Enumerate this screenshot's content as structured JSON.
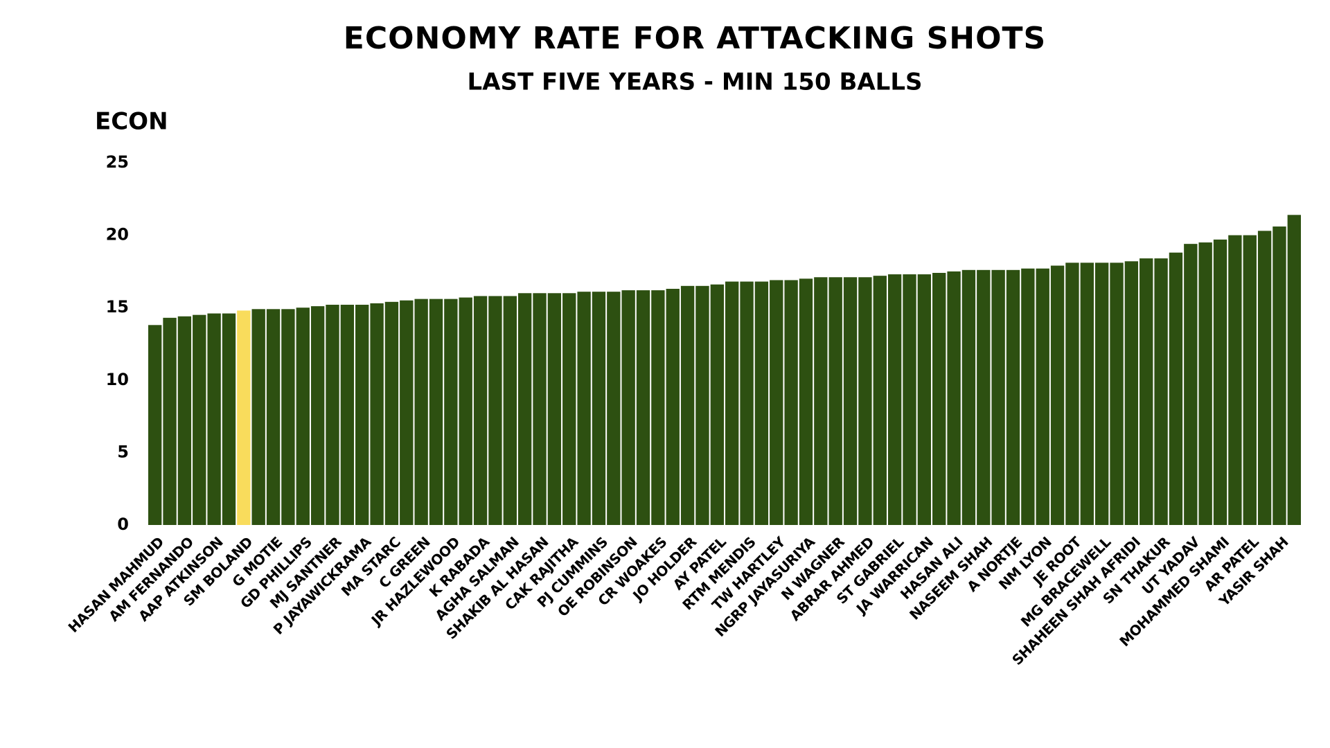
{
  "chart_data": {
    "type": "bar",
    "title": "ECONOMY RATE FOR ATTACKING SHOTS",
    "subtitle": "LAST FIVE YEARS - MIN 150 BALLS",
    "y_label": "ECON",
    "categories": [
      "HASAN MAHMUD",
      null,
      "AM FERNANDO",
      null,
      "AAP ATKINSON",
      null,
      "SM BOLAND",
      null,
      "G MOTIE",
      null,
      "GD PHILLIPS",
      null,
      "MJ SANTNER",
      null,
      "P JAYAWICKRAMA",
      null,
      "MA STARC",
      null,
      "C GREEN",
      null,
      "JR HAZLEWOOD",
      null,
      "K RABADA",
      null,
      "AGHA SALMAN",
      null,
      "SHAKIB AL HASAN",
      null,
      "CAK RAJITHA",
      null,
      "PJ CUMMINS",
      null,
      "OE ROBINSON",
      null,
      "CR WOAKES",
      null,
      "JO HOLDER",
      null,
      "AY PATEL",
      null,
      "RTM MENDIS",
      null,
      "TW HARTLEY",
      null,
      "NGRP JAYASURIYA",
      null,
      "N WAGNER",
      null,
      "ABRAR AHMED",
      null,
      "ST GABRIEL",
      null,
      "JA WARRICAN",
      null,
      "HASAN ALI",
      null,
      "NASEEM SHAH",
      null,
      "A NORTJE",
      null,
      "NM LYON",
      null,
      "JE ROOT",
      null,
      "MG BRACEWELL",
      null,
      "SHAHEEN SHAH AFRIDI",
      null,
      "SN THAKUR",
      null,
      "UT YADAV",
      null,
      "MOHAMMED SHAMI",
      null,
      "AR PATEL",
      null,
      "YASIR SHAH",
      null
    ],
    "values": [
      13.8,
      14.3,
      14.4,
      14.5,
      14.6,
      14.6,
      14.8,
      14.9,
      14.9,
      14.9,
      15.0,
      15.1,
      15.2,
      15.2,
      15.2,
      15.3,
      15.4,
      15.5,
      15.6,
      15.6,
      15.6,
      15.7,
      15.8,
      15.8,
      15.8,
      16.0,
      16.0,
      16.0,
      16.0,
      16.1,
      16.1,
      16.1,
      16.2,
      16.2,
      16.2,
      16.3,
      16.5,
      16.5,
      16.6,
      16.8,
      16.8,
      16.8,
      16.9,
      16.9,
      17.0,
      17.1,
      17.1,
      17.1,
      17.1,
      17.2,
      17.3,
      17.3,
      17.3,
      17.4,
      17.5,
      17.6,
      17.6,
      17.6,
      17.6,
      17.7,
      17.7,
      17.9,
      18.1,
      18.1,
      18.1,
      18.1,
      18.2,
      18.4,
      18.4,
      18.8,
      19.4,
      19.5,
      19.7,
      20.0,
      20.0,
      20.3,
      20.6,
      21.4
    ],
    "colors": [
      "#2d5011",
      "#2d5011",
      "#2d5011",
      "#2d5011",
      "#2d5011",
      "#2d5011",
      "#f9dc5c",
      "#2d5011",
      "#2d5011",
      "#2d5011",
      "#2d5011",
      "#2d5011",
      "#2d5011",
      "#2d5011",
      "#2d5011",
      "#2d5011",
      "#2d5011",
      "#2d5011",
      "#2d5011",
      "#2d5011",
      "#2d5011",
      "#2d5011",
      "#2d5011",
      "#2d5011",
      "#2d5011",
      "#2d5011",
      "#2d5011",
      "#2d5011",
      "#2d5011",
      "#2d5011",
      "#2d5011",
      "#2d5011",
      "#2d5011",
      "#2d5011",
      "#2d5011",
      "#2d5011",
      "#2d5011",
      "#2d5011",
      "#2d5011",
      "#2d5011",
      "#2d5011",
      "#2d5011",
      "#2d5011",
      "#2d5011",
      "#2d5011",
      "#2d5011",
      "#2d5011",
      "#2d5011",
      "#2d5011",
      "#2d5011",
      "#2d5011",
      "#2d5011",
      "#2d5011",
      "#2d5011",
      "#2d5011",
      "#2d5011",
      "#2d5011",
      "#2d5011",
      "#2d5011",
      "#2d5011",
      "#2d5011",
      "#2d5011",
      "#2d5011",
      "#2d5011",
      "#2d5011",
      "#2d5011",
      "#2d5011",
      "#2d5011",
      "#2d5011",
      "#2d5011",
      "#2d5011",
      "#2d5011",
      "#2d5011",
      "#2d5011",
      "#2d5011",
      "#2d5011",
      "#2d5011",
      "#2d5011"
    ],
    "ylim": [
      0,
      25
    ],
    "yticks": [
      0,
      5,
      10,
      15,
      20,
      25
    ],
    "grid": false
  }
}
